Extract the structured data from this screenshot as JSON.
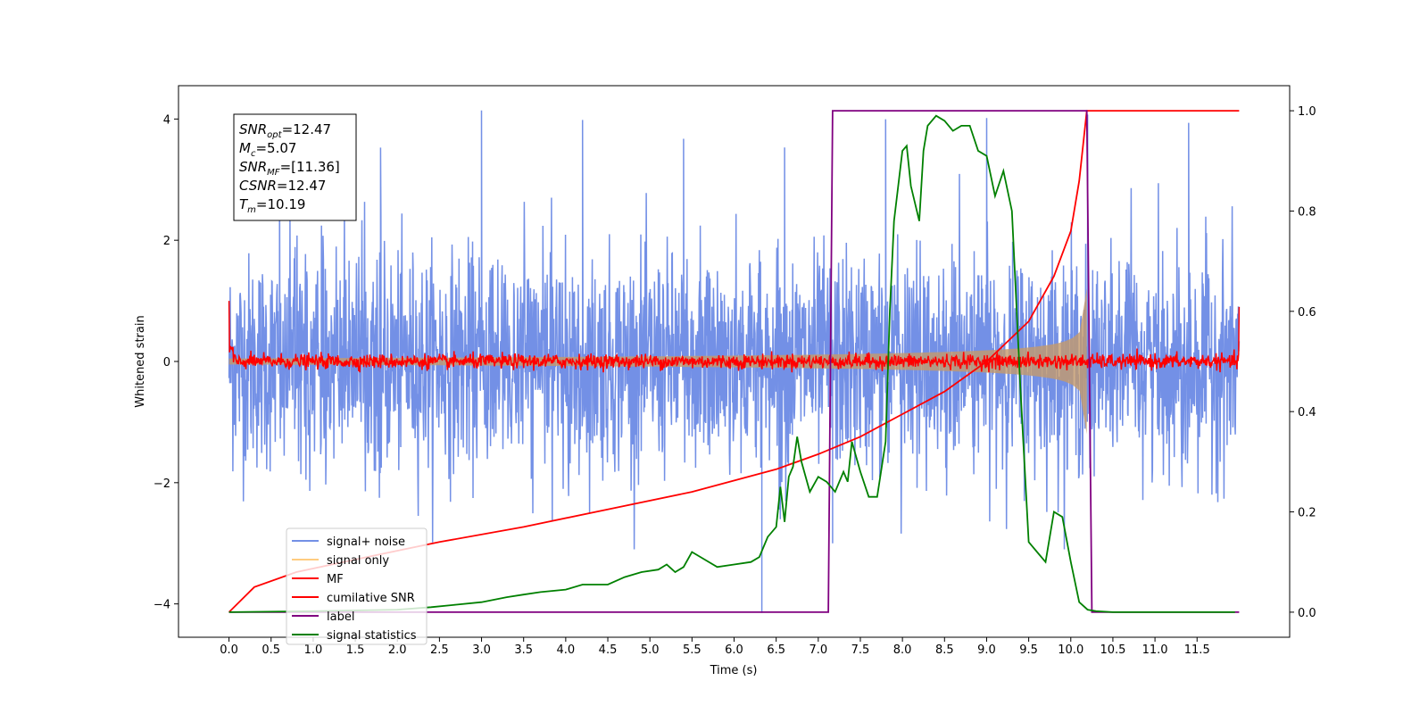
{
  "chart_data": {
    "type": "line",
    "title": "",
    "xlabel": "Time (s)",
    "ylabel": "Whitened strain",
    "xlim": [
      -0.6,
      12.6
    ],
    "ylim": [
      -4.55,
      4.55
    ],
    "y2lim": [
      -0.05,
      1.05
    ],
    "x_ticks": [
      0.0,
      0.5,
      1.0,
      1.5,
      2.0,
      2.5,
      3.0,
      3.5,
      4.0,
      4.5,
      5.0,
      5.5,
      6.0,
      6.5,
      7.0,
      7.5,
      8.0,
      8.5,
      9.0,
      9.5,
      10.0,
      10.5,
      11.0,
      11.5
    ],
    "x_tick_labels": [
      "0.0",
      "0.5",
      "1.0",
      "1.5",
      "2.0",
      "2.5",
      "3.0",
      "3.5",
      "4.0",
      "4.5",
      "5.0",
      "5.5",
      "6.0",
      "6.5",
      "7.0",
      "7.5",
      "8.0",
      "8.5",
      "9.0",
      "9.5",
      "10.0",
      "10.5",
      "11.0",
      "11.5"
    ],
    "y_ticks": [
      -4,
      -2,
      0,
      2,
      4
    ],
    "y_tick_labels": [
      "−4",
      "−2",
      "0",
      "2",
      "4"
    ],
    "y2_ticks": [
      0.0,
      0.2,
      0.4,
      0.6,
      0.8,
      1.0
    ],
    "y2_tick_labels": [
      "0.0",
      "0.2",
      "0.4",
      "0.6",
      "0.8",
      "1.0"
    ],
    "grid": false,
    "legend_position": "lower-left",
    "annotation": {
      "lines": [
        {
          "main": "SNR",
          "sub": "opt",
          "rest": "=12.47"
        },
        {
          "main": "M",
          "sub": "c",
          "rest": "=5.07"
        },
        {
          "main": "SNR",
          "sub": "MF",
          "rest": "=[11.36]"
        },
        {
          "main": "CSNR",
          "sub": "",
          "rest": "=12.47"
        },
        {
          "main": "T",
          "sub": "m",
          "rest": "=10.19"
        }
      ]
    },
    "noise_envelope": {
      "typical_amplitude": 1.6,
      "peak_max": 4.15,
      "trough_min": -3.4,
      "dip_to_minimum": [
        {
          "x": 6.33,
          "y": -4.15
        },
        {
          "x": 7.17,
          "y": -3.0
        }
      ]
    },
    "signal_envelope": {
      "t_start": 0.0,
      "t_merge": 10.19,
      "amp_start": 0.05,
      "amp_at_merge": 1.2
    },
    "series": [
      {
        "name": "signal+ noise",
        "color": "#7390e6",
        "axis": "left",
        "kind": "noise",
        "x_range": [
          0.0,
          12.0
        ]
      },
      {
        "name": "signal only",
        "color": "#ffcc80",
        "axis": "left",
        "kind": "chirp",
        "x_range": [
          0.0,
          10.19
        ]
      },
      {
        "name": "MF",
        "color": "#ff0000",
        "axis": "left",
        "kind": "noise-small",
        "x_range": [
          0.0,
          12.0
        ],
        "start_value": 1.0,
        "end_value": 0.9
      },
      {
        "name": "cumilative SNR",
        "color": "#ff0000",
        "axis": "right",
        "x": [
          0.0,
          0.3,
          0.8,
          1.5,
          2.5,
          3.5,
          4.5,
          5.5,
          6.5,
          7.0,
          7.5,
          8.0,
          8.5,
          9.0,
          9.5,
          9.8,
          10.0,
          10.1,
          10.19,
          12.0
        ],
        "y": [
          0.0,
          0.05,
          0.08,
          0.105,
          0.14,
          0.17,
          0.205,
          0.24,
          0.285,
          0.315,
          0.35,
          0.395,
          0.44,
          0.5,
          0.58,
          0.67,
          0.76,
          0.86,
          1.0,
          1.0
        ]
      },
      {
        "name": "label",
        "color": "#800080",
        "axis": "right",
        "x": [
          0.0,
          7.12,
          7.17,
          10.19,
          10.25,
          12.0
        ],
        "y": [
          0.0,
          0.0,
          1.0,
          1.0,
          0.0,
          0.0
        ]
      },
      {
        "name": "signal statistics",
        "color": "#008000",
        "axis": "right",
        "x": [
          0.0,
          1.0,
          2.0,
          2.4,
          2.7,
          3.0,
          3.3,
          3.5,
          3.7,
          4.0,
          4.2,
          4.5,
          4.7,
          4.9,
          5.1,
          5.2,
          5.3,
          5.4,
          5.5,
          5.6,
          5.8,
          6.0,
          6.2,
          6.3,
          6.4,
          6.5,
          6.55,
          6.6,
          6.65,
          6.7,
          6.75,
          6.8,
          6.9,
          7.0,
          7.1,
          7.2,
          7.3,
          7.35,
          7.4,
          7.5,
          7.6,
          7.7,
          7.8,
          7.85,
          7.9,
          8.0,
          8.05,
          8.1,
          8.2,
          8.25,
          8.3,
          8.4,
          8.5,
          8.6,
          8.7,
          8.8,
          8.9,
          9.0,
          9.1,
          9.2,
          9.3,
          9.4,
          9.5,
          9.6,
          9.7,
          9.8,
          9.9,
          10.0,
          10.1,
          10.2,
          10.3,
          10.5,
          11.0,
          11.5,
          11.95
        ],
        "y": [
          0.0,
          0.002,
          0.005,
          0.01,
          0.015,
          0.02,
          0.03,
          0.035,
          0.04,
          0.045,
          0.055,
          0.055,
          0.07,
          0.08,
          0.085,
          0.095,
          0.08,
          0.09,
          0.12,
          0.11,
          0.09,
          0.095,
          0.1,
          0.11,
          0.15,
          0.17,
          0.25,
          0.18,
          0.27,
          0.29,
          0.35,
          0.3,
          0.24,
          0.27,
          0.26,
          0.24,
          0.28,
          0.26,
          0.34,
          0.28,
          0.23,
          0.23,
          0.34,
          0.6,
          0.78,
          0.92,
          0.93,
          0.85,
          0.78,
          0.92,
          0.97,
          0.99,
          0.98,
          0.96,
          0.97,
          0.97,
          0.92,
          0.91,
          0.83,
          0.88,
          0.8,
          0.45,
          0.14,
          0.12,
          0.1,
          0.2,
          0.19,
          0.1,
          0.02,
          0.005,
          0.002,
          0.0,
          0.0,
          0.0,
          0.0
        ]
      }
    ]
  }
}
